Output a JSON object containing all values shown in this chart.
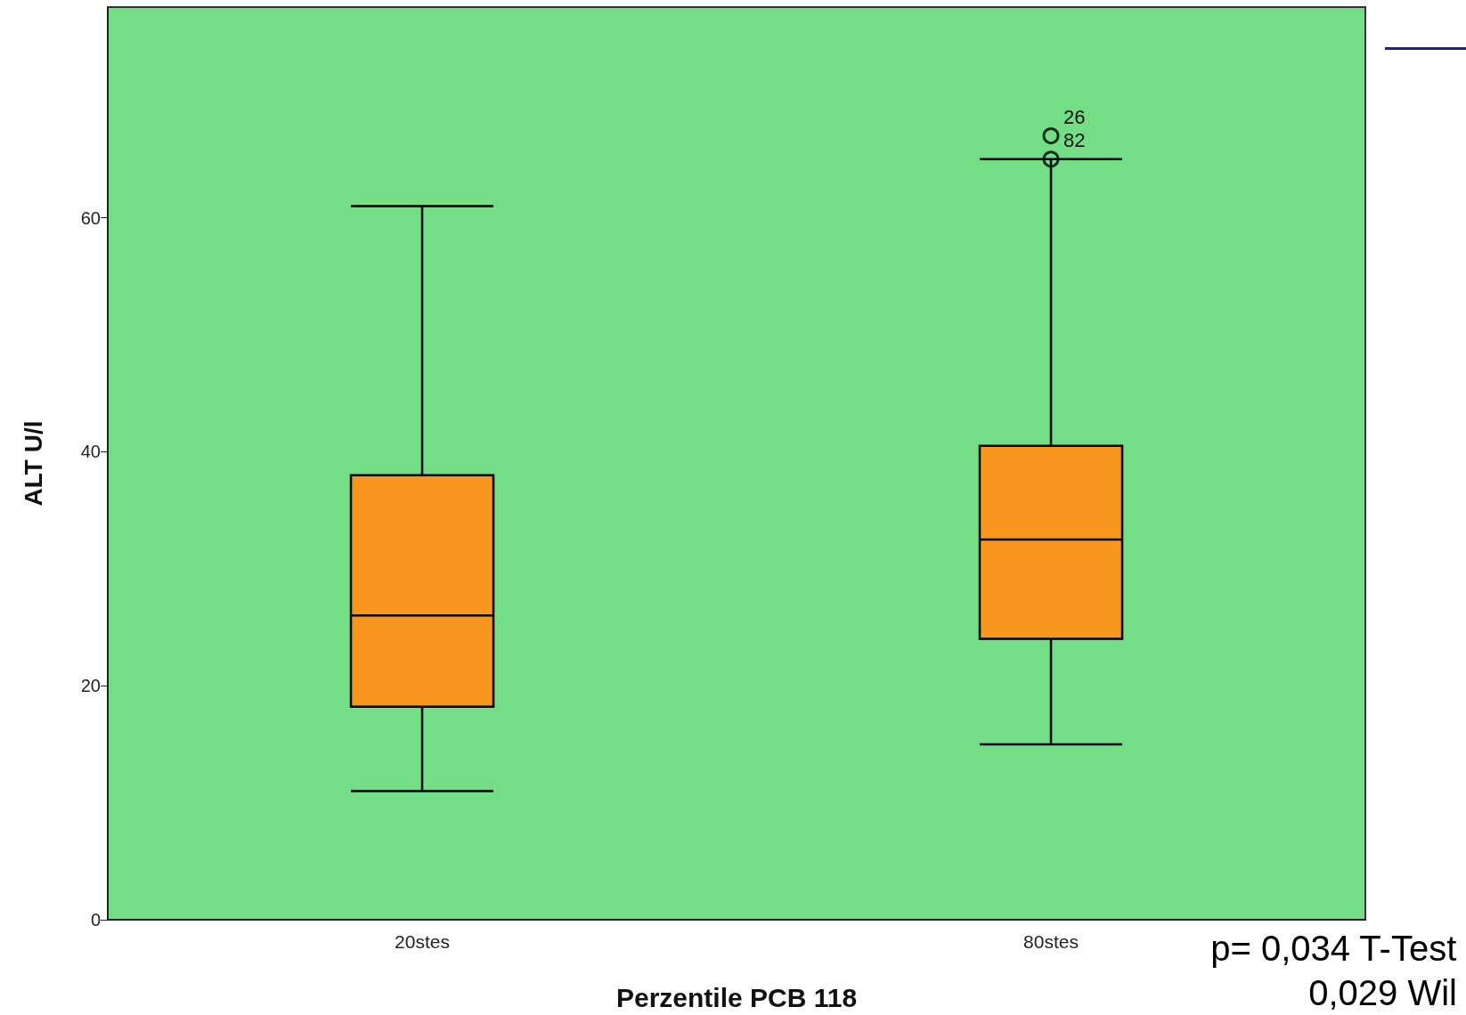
{
  "chart_data": {
    "type": "box",
    "xlabel": "Perzentile PCB 118",
    "ylabel": "ALT U/l",
    "categories": [
      "20stes",
      "80stes"
    ],
    "boxes": [
      {
        "low": 11,
        "q1": 18.2,
        "median": 26,
        "q3": 38,
        "high": 61
      },
      {
        "low": 15,
        "q1": 24,
        "median": 32.5,
        "q3": 40.5,
        "high": 65,
        "outliers": [
          67,
          65
        ]
      }
    ],
    "color": "#f7971e",
    "ylim": [
      0,
      78
    ],
    "yticks": [
      0,
      20,
      40,
      60
    ],
    "grid": false,
    "marker": "circle",
    "annotations": [
      "26",
      "82",
      "p= 0,034 T-Test",
      "0,029 Wil"
    ]
  }
}
